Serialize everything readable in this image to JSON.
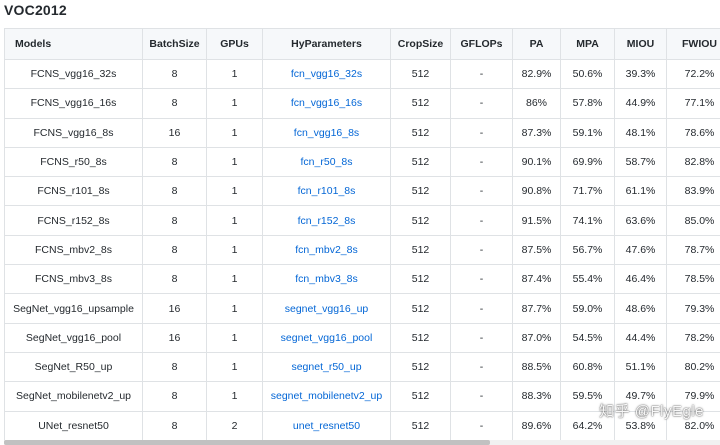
{
  "title": "VOC2012",
  "columns": [
    "Models",
    "BatchSize",
    "GPUs",
    "HyParameters",
    "CropSize",
    "GFLOPs",
    "PA",
    "MPA",
    "MIOU",
    "FWIOU"
  ],
  "rows": [
    [
      "FCNS_vgg16_32s",
      "8",
      "1",
      "fcn_vgg16_32s",
      "512",
      "-",
      "82.9%",
      "50.6%",
      "39.3%",
      "72.2%"
    ],
    [
      "FCNS_vgg16_16s",
      "8",
      "1",
      "fcn_vgg16_16s",
      "512",
      "-",
      "86%",
      "57.8%",
      "44.9%",
      "77.1%"
    ],
    [
      "FCNS_vgg16_8s",
      "16",
      "1",
      "fcn_vgg16_8s",
      "512",
      "-",
      "87.3%",
      "59.1%",
      "48.1%",
      "78.6%"
    ],
    [
      "FCNS_r50_8s",
      "8",
      "1",
      "fcn_r50_8s",
      "512",
      "-",
      "90.1%",
      "69.9%",
      "58.7%",
      "82.8%"
    ],
    [
      "FCNS_r101_8s",
      "8",
      "1",
      "fcn_r101_8s",
      "512",
      "-",
      "90.8%",
      "71.7%",
      "61.1%",
      "83.9%"
    ],
    [
      "FCNS_r152_8s",
      "8",
      "1",
      "fcn_r152_8s",
      "512",
      "-",
      "91.5%",
      "74.1%",
      "63.6%",
      "85.0%"
    ],
    [
      "FCNS_mbv2_8s",
      "8",
      "1",
      "fcn_mbv2_8s",
      "512",
      "-",
      "87.5%",
      "56.7%",
      "47.6%",
      "78.7%"
    ],
    [
      "FCNS_mbv3_8s",
      "8",
      "1",
      "fcn_mbv3_8s",
      "512",
      "-",
      "87.4%",
      "55.4%",
      "46.4%",
      "78.5%"
    ],
    [
      "SegNet_vgg16_upsample",
      "16",
      "1",
      "segnet_vgg16_up",
      "512",
      "-",
      "87.7%",
      "59.0%",
      "48.6%",
      "79.3%"
    ],
    [
      "SegNet_vgg16_pool",
      "16",
      "1",
      "segnet_vgg16_pool",
      "512",
      "-",
      "87.0%",
      "54.5%",
      "44.4%",
      "78.2%"
    ],
    [
      "SegNet_R50_up",
      "8",
      "1",
      "segnet_r50_up",
      "512",
      "-",
      "88.5%",
      "60.8%",
      "51.1%",
      "80.2%"
    ],
    [
      "SegNet_mobilenetv2_up",
      "8",
      "1",
      "segnet_mobilenetv2_up",
      "512",
      "-",
      "88.3%",
      "59.5%",
      "49.7%",
      "79.9%"
    ],
    [
      "UNet_resnet50",
      "8",
      "2",
      "unet_resnet50",
      "512",
      "-",
      "89.6%",
      "64.2%",
      "53.8%",
      "82.0%"
    ]
  ],
  "watermark": "知乎 @FlyEgle"
}
